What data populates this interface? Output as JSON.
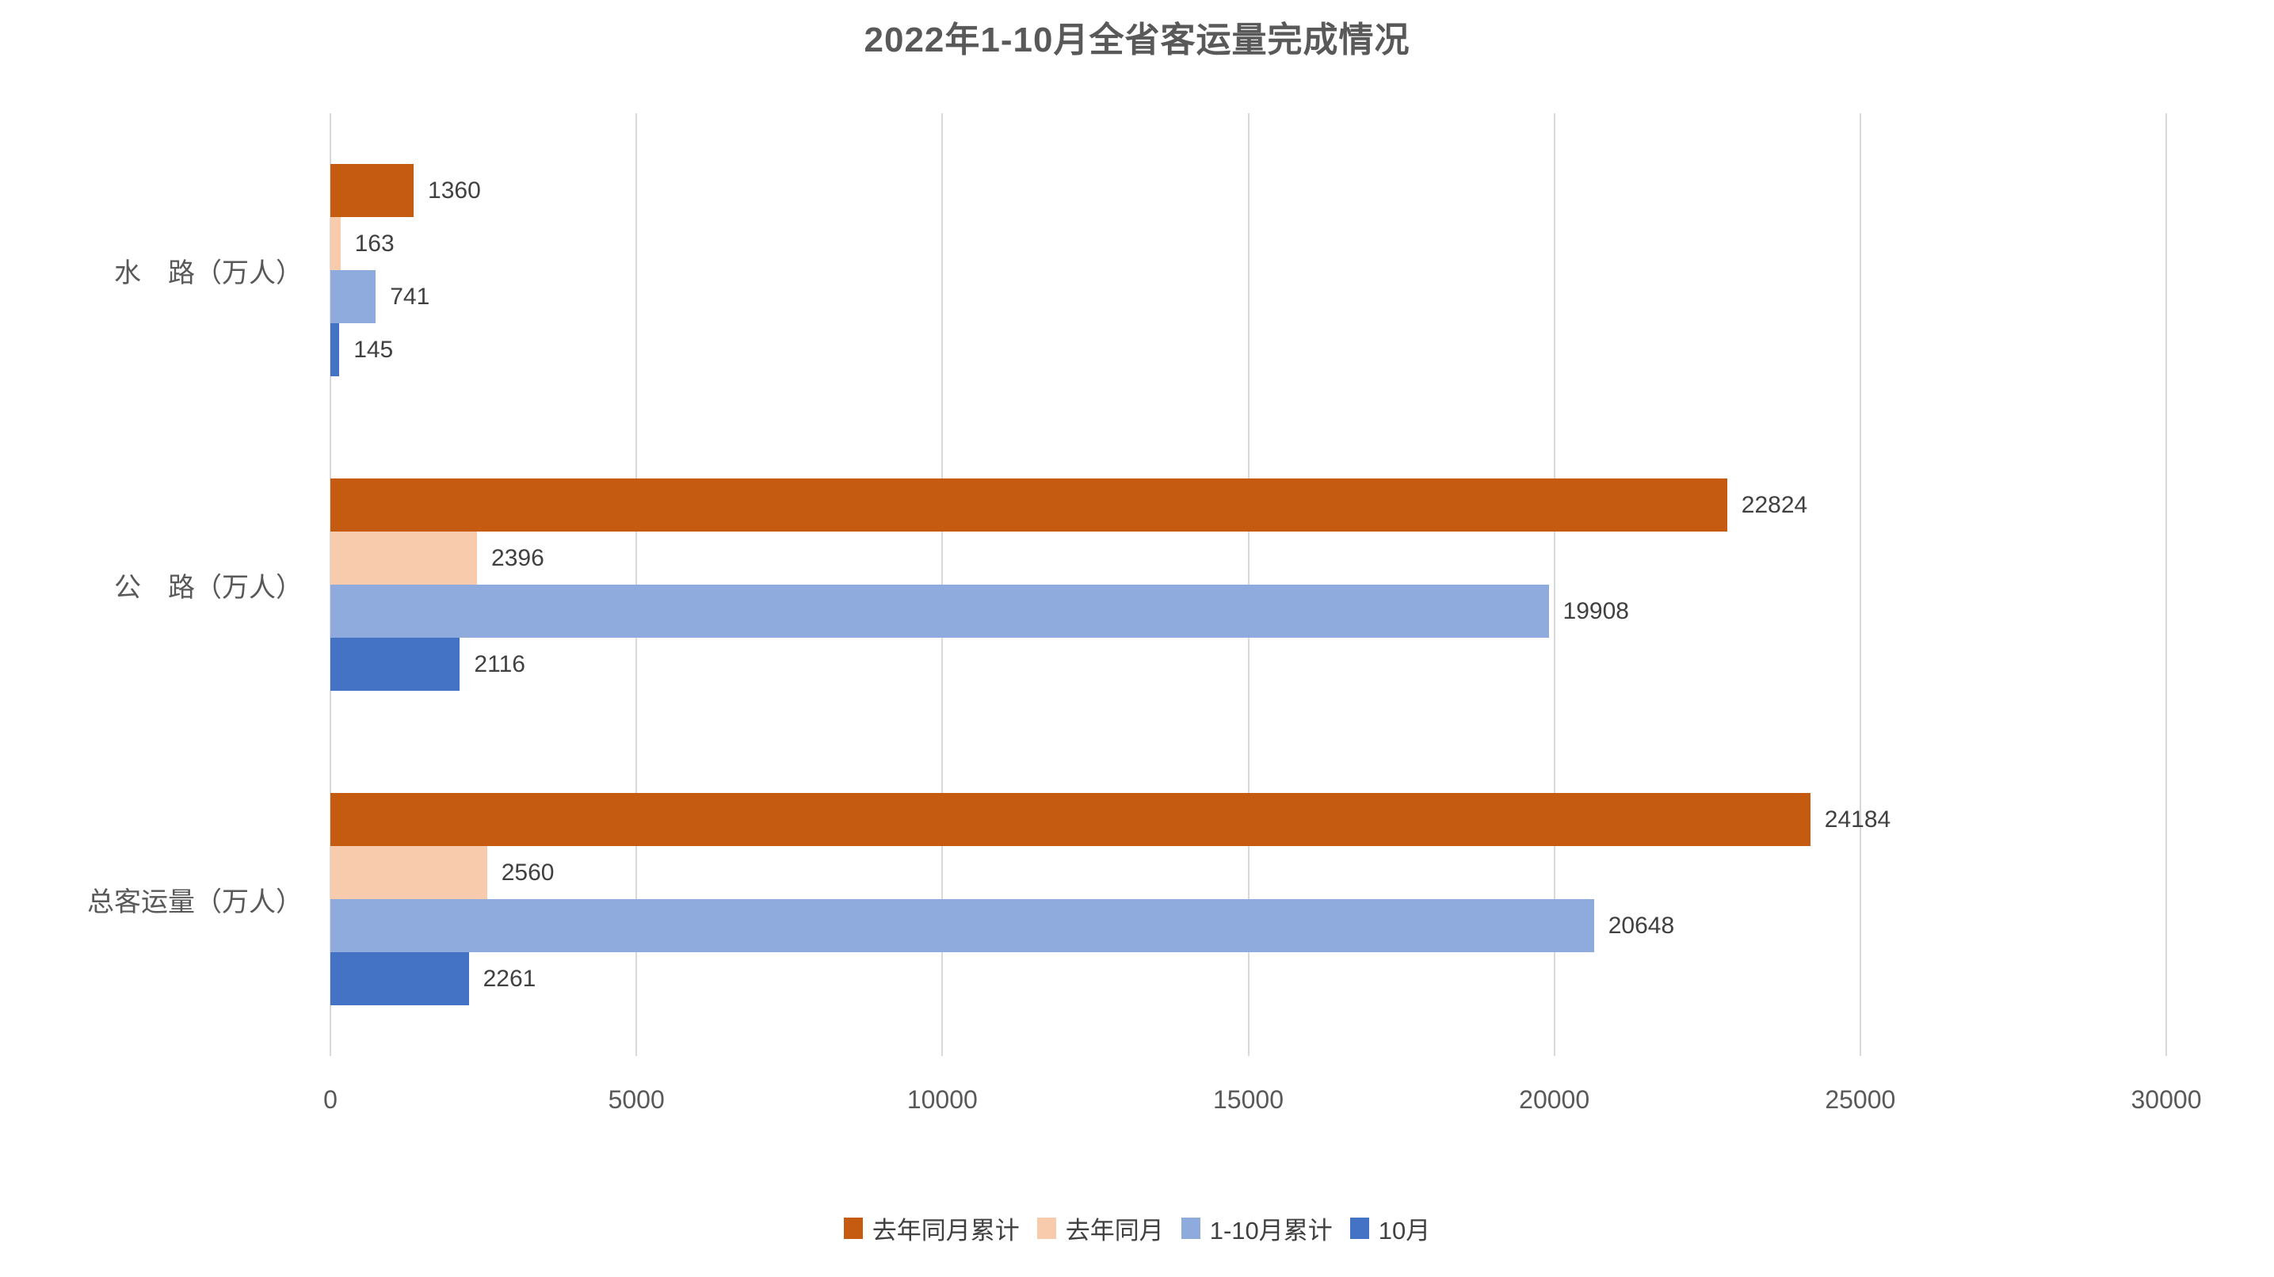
{
  "title": "2022年1-10月全省客运量完成情况",
  "theme": {
    "background": "#FFFFFF",
    "title_color": "#595959",
    "data_label_color": "#404040",
    "axis_text_color": "#595959",
    "gridline_color": "#D9D9D9"
  },
  "chart_data": {
    "type": "bar",
    "orientation": "horizontal",
    "title": "2022年1-10月全省客运量完成情况",
    "categories": [
      "水　路（万人）",
      "公　路（万人）",
      "总客运量（万人）"
    ],
    "series": [
      {
        "name": "去年同月累计",
        "color": "#C55A11",
        "values": [
          1360,
          22824,
          24184
        ]
      },
      {
        "name": "去年同月",
        "color": "#F8CBAD",
        "values": [
          163,
          2396,
          2560
        ]
      },
      {
        "name": "1-10月累计",
        "color": "#8FAADC",
        "values": [
          741,
          19908,
          20648
        ]
      },
      {
        "name": "10月",
        "color": "#4472C4",
        "values": [
          145,
          2116,
          2261
        ]
      }
    ],
    "xlim": [
      0,
      30000
    ],
    "x_ticks": [
      "0",
      "5000",
      "10000",
      "15000",
      "20000",
      "25000",
      "30000"
    ],
    "grid": true,
    "data_labels": true,
    "legend_position": "bottom"
  }
}
